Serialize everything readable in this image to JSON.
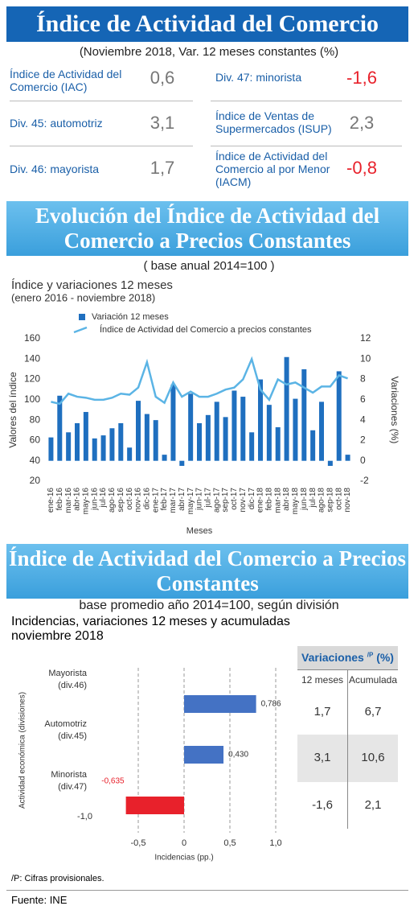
{
  "header": {
    "title": "Índice de Actividad del Comercio",
    "subtitle": "(Noviembre 2018, Var. 12 meses constantes (%)"
  },
  "kpis": [
    {
      "label": "Índice de Actividad del Comercio (IAC)",
      "value": "0,6"
    },
    {
      "label": "Div. 45: automotriz",
      "value": "3,1"
    },
    {
      "label": "Div. 46: mayorista",
      "value": "1,7"
    },
    {
      "label": "Div. 47: minorista",
      "value": "-1,6"
    },
    {
      "label": "Índice de Ventas de Supermercados (ISUP)",
      "value": "2,3"
    },
    {
      "label": "Índice de Actividad del Comercio al por Menor (IACM)",
      "value": "-0,8"
    }
  ],
  "section2": {
    "title": "Evolución del Índice de Actividad del Comercio a Precios Constantes",
    "subtitle": "( base anual 2014=100 )"
  },
  "section3": {
    "title": "Índice de Actividad del Comercio a Precios Constantes",
    "subtitle": "base promedio año 2014=100, según división"
  },
  "chart_data": [
    {
      "type": "combo",
      "title": "Índice y variaciones 12 meses",
      "subtitle": "(enero 2016 - noviembre 2018)",
      "x_label": "Meses",
      "y_label": "Valores del índice",
      "y2_label": "Variaciones (%)",
      "categories": [
        "ene-16",
        "feb-16",
        "mar-16",
        "abr-16",
        "may-16",
        "jun-16",
        "jul-16",
        "ago-16",
        "sep-16",
        "oct-16",
        "nov-16",
        "dic-16",
        "ene-17",
        "feb-17",
        "mar-17",
        "abr-17",
        "may-17",
        "jun-17",
        "jul-17",
        "ago-17",
        "sep-17",
        "oct-17",
        "nov-17",
        "dic-17",
        "ene-18",
        "feb-18",
        "mar-18",
        "abr-18",
        "may-18",
        "jun-18",
        "jul-18",
        "ago-18",
        "sep-18",
        "oct-18",
        "nov-18"
      ],
      "series": [
        {
          "name": "Variación 12 meses",
          "type": "bar",
          "axis": "y2",
          "color": "#1f6fbf",
          "values": [
            2.3,
            6.4,
            2.8,
            3.7,
            4.8,
            2.2,
            2.5,
            3.2,
            3.7,
            1.3,
            5.9,
            4.6,
            4.0,
            0.6,
            7.5,
            -0.5,
            6.6,
            3.7,
            4.5,
            5.8,
            4.3,
            6.9,
            6.3,
            2.8,
            8.0,
            5.5,
            3.3,
            10.2,
            6.1,
            9.0,
            3.0,
            5.8,
            -0.5,
            8.8,
            0.6
          ]
        },
        {
          "name": "Índice de Actividad del Comercio a precios constantes",
          "type": "line",
          "color": "#5bb4e5",
          "values": [
            98,
            96,
            106,
            103,
            102,
            100,
            100,
            102,
            106,
            105,
            112,
            137,
            103,
            97,
            117,
            103,
            108,
            103,
            103,
            106,
            110,
            112,
            120,
            140,
            110,
            100,
            120,
            115,
            117,
            112,
            107,
            113,
            113,
            124,
            121
          ]
        }
      ],
      "ylim": [
        20,
        160
      ],
      "yticks": [
        20,
        40,
        60,
        80,
        100,
        120,
        140,
        160
      ],
      "y2lim": [
        -2,
        12
      ],
      "y2ticks": [
        -2,
        0,
        2,
        4,
        6,
        8,
        10,
        12
      ],
      "grid": false
    },
    {
      "type": "hbar",
      "title": "Incidencias, variaciones 12 meses y acumuladas",
      "subtitle": "noviembre 2018",
      "x_label": "Incidencias (pp.)",
      "y_label": "Actividad económica (divisiones)",
      "categories": [
        "Mayorista (div.46)",
        "Automotriz (div.45)",
        "Minorista (div.47)"
      ],
      "values": [
        0.786,
        0.43,
        -0.635
      ],
      "value_labels": [
        "0,786",
        "0,430",
        "-0,635"
      ],
      "colors": {
        "positive": "#4472c4",
        "negative": "#e8212b"
      },
      "xlim": [
        -1.0,
        1.0
      ],
      "xticks": [
        {
          "value": -1.0,
          "label": "-1,0"
        },
        {
          "value": -0.5,
          "label": "-0,5"
        },
        0,
        {
          "value": 0.5,
          "label": "0,5"
        },
        {
          "value": 1.0,
          "label": "1,0"
        }
      ],
      "grid": true
    }
  ],
  "table": {
    "title": "Variaciones",
    "title_sup": "/P",
    "title_unit": "(%)",
    "columns": [
      "12 meses",
      "Acumulada"
    ],
    "rows": [
      [
        "1,7",
        "6,7"
      ],
      [
        "3,1",
        "10,6"
      ],
      [
        "-1,6",
        "2,1"
      ]
    ]
  },
  "footer": {
    "note": "/P: Cifras provisionales.",
    "source": "Fuente: INE"
  }
}
